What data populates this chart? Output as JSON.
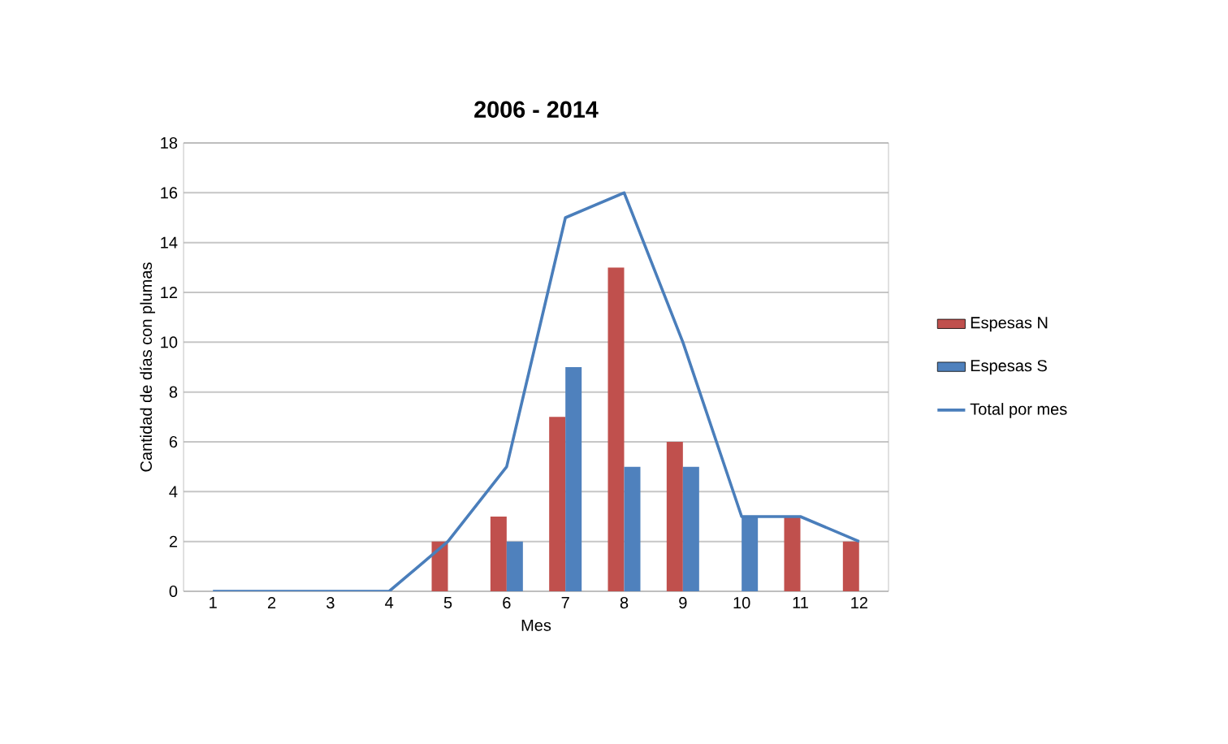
{
  "chart_data": {
    "type": "bar",
    "title": "2006 - 2014",
    "xlabel": "Mes",
    "ylabel": "Cantidad de días con plumas",
    "categories": [
      "1",
      "2",
      "3",
      "4",
      "5",
      "6",
      "7",
      "8",
      "9",
      "10",
      "11",
      "12"
    ],
    "series": [
      {
        "name": "Espesas N",
        "color": "#c0504d",
        "values": [
          0,
          0,
          0,
          0,
          2,
          3,
          7,
          13,
          6,
          0,
          3,
          2
        ]
      },
      {
        "name": "Espesas S",
        "color": "#4f81bd",
        "values": [
          0,
          0,
          0,
          0,
          0,
          2,
          9,
          5,
          5,
          3,
          0,
          0
        ]
      },
      {
        "name": "Total  por mes",
        "type": "line",
        "color": "#4a7ebb",
        "values": [
          0,
          0,
          0,
          0,
          2,
          5,
          15,
          16,
          10,
          3,
          3,
          2
        ]
      }
    ],
    "ylim": [
      0,
      18
    ],
    "yticks": [
      0,
      2,
      4,
      6,
      8,
      10,
      12,
      14,
      16,
      18
    ],
    "grid": "y",
    "legend": "right"
  }
}
